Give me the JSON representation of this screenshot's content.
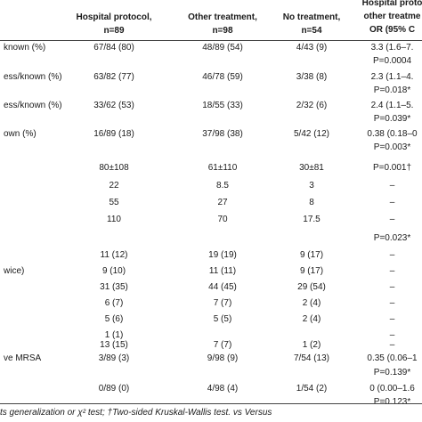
{
  "header": {
    "col1": [
      "Hospital protocol,",
      "n=89"
    ],
    "col2": [
      "Other treatment,",
      "n=98"
    ],
    "col3": [
      "No treatment,",
      "n=54"
    ],
    "col4": [
      "Hospital proto",
      "other treatme",
      "OR (95% C"
    ]
  },
  "rows": [
    {
      "label": "known (%)",
      "c1": "67/84 (80)",
      "c2": "48/89 (54)",
      "c3": "4/43 (9)",
      "c4": "3.3 (1.6–7."
    },
    {
      "label": "",
      "c1": "",
      "c2": "",
      "c3": "",
      "c4": "P=0.0004"
    },
    {
      "label": "ess/known (%)",
      "c1": "63/82 (77)",
      "c2": "46/78 (59)",
      "c3": "3/38 (8)",
      "c4": "2.3 (1.1–4."
    },
    {
      "label": "",
      "c1": "",
      "c2": "",
      "c3": "",
      "c4": "P=0.018*"
    },
    {
      "label": "ess/known (%)",
      "c1": "33/62 (53)",
      "c2": "18/55 (33)",
      "c3": "2/32 (6)",
      "c4": "2.4 (1.1–5."
    },
    {
      "label": "",
      "c1": "",
      "c2": "",
      "c3": "",
      "c4": "P=0.039*"
    },
    {
      "label": "own (%)",
      "c1": "16/89 (18)",
      "c2": "37/98 (38)",
      "c3": "5/42 (12)",
      "c4": "0.38 (0.18–0"
    },
    {
      "label": "",
      "c1": "",
      "c2": "",
      "c3": "",
      "c4": "P=0.003*"
    },
    {
      "label": "",
      "c1": "80±108",
      "c2": "61±110",
      "c3": "30±81",
      "c4": "P=0.001†"
    },
    {
      "label": "",
      "c1": "22",
      "c2": "8.5",
      "c3": "3",
      "c4": "–"
    },
    {
      "label": "",
      "c1": "55",
      "c2": "27",
      "c3": "8",
      "c4": "–"
    },
    {
      "label": "",
      "c1": "110",
      "c2": "70",
      "c3": "17.5",
      "c4": "–"
    },
    {
      "label": "",
      "c1": "",
      "c2": "",
      "c3": "",
      "c4": "P=0.023*"
    },
    {
      "label": "",
      "c1": "11 (12)",
      "c2": "19 (19)",
      "c3": "9 (17)",
      "c4": "–"
    },
    {
      "label": "wice)",
      "c1": "9 (10)",
      "c2": "11 (11)",
      "c3": "9 (17)",
      "c4": "–"
    },
    {
      "label": "",
      "c1": "31 (35)",
      "c2": "44 (45)",
      "c3": "29 (54)",
      "c4": "–"
    },
    {
      "label": "",
      "c1": "6 (7)",
      "c2": "7 (7)",
      "c3": "2 (4)",
      "c4": "–"
    },
    {
      "label": "",
      "c1": "5 (6)",
      "c2": "5 (5)",
      "c3": "2 (4)",
      "c4": "–"
    },
    {
      "label": "",
      "c1": "1 (1)",
      "c2": "",
      "c3": "",
      "c4": "–"
    },
    {
      "label": "",
      "c1": "13 (15)",
      "c2": "7 (7)",
      "c3": "1 (2)",
      "c4": "–"
    },
    {
      "label": "ve MRSA",
      "c1": "3/89 (3)",
      "c2": "9/98 (9)",
      "c3": "7/54 (13)",
      "c4": "0.35 (0.06–1"
    },
    {
      "label": "",
      "c1": "",
      "c2": "",
      "c3": "",
      "c4": "P=0.139*"
    },
    {
      "label": "",
      "c1": "0/89 (0)",
      "c2": "4/98 (4)",
      "c3": "1/54 (2)",
      "c4": "0 (0.00–1.6"
    },
    {
      "label": "",
      "c1": "",
      "c2": "",
      "c3": "",
      "c4": "P=0.123*"
    }
  ],
  "footnote": "ts generalization or χ² test; †Two-sided Kruskal-Wallis test. vs Versus"
}
